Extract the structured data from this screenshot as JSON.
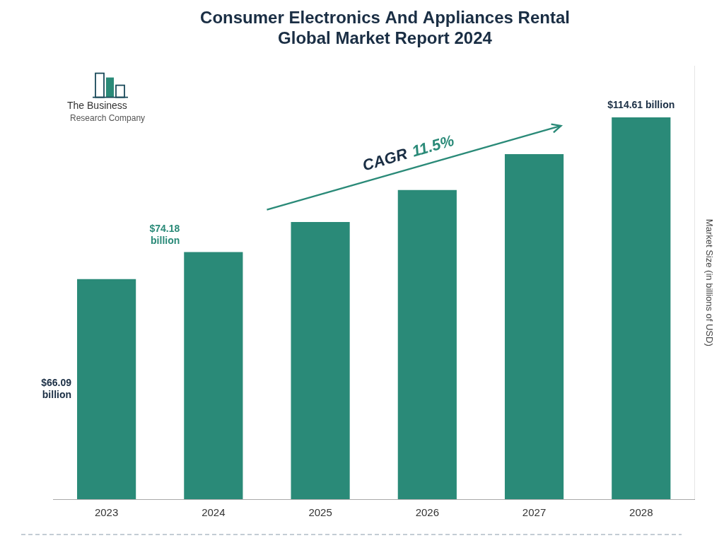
{
  "chart_data": {
    "type": "bar",
    "title": [
      "Consumer Electronics And Appliances Rental",
      "Global Market Report 2024"
    ],
    "title_color": "#1a2e44",
    "categories": [
      "2023",
      "2024",
      "2025",
      "2026",
      "2027",
      "2028"
    ],
    "values": [
      66.09,
      74.18,
      83.21,
      92.84,
      103.6,
      114.61
    ],
    "color": "#2a8a78",
    "ylabel": "Market Size (in billions of USD)",
    "ylabel_color": "#444444",
    "ylim": [
      0,
      130
    ],
    "grid": false,
    "tick_labels": "x",
    "annotations": [
      {
        "text": "$66.09\nbillion",
        "color": "#1a2e44",
        "category": "2023"
      },
      {
        "text": "$74.18\nbillion",
        "color": "#2a8a78",
        "category": "2024"
      },
      {
        "text": "$114.61 billion",
        "color": "#1a2e44",
        "category": "2028"
      }
    ],
    "cagr": {
      "label": "CAGR",
      "value": "11.5%",
      "label_color": "#1a2e44",
      "value_color": "#2a8a78",
      "arrow_color": "#2a8a78"
    },
    "logo": {
      "text": [
        "The Business",
        "Research Company"
      ],
      "colors": [
        "#1a4a5a",
        "#2a8a78"
      ]
    }
  }
}
